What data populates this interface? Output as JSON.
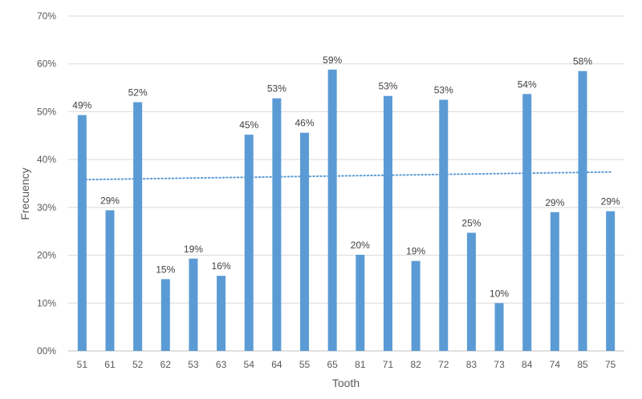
{
  "chart_data": {
    "type": "bar",
    "title": "",
    "xlabel": "Tooth",
    "ylabel": "Frecuency",
    "categories": [
      "51",
      "61",
      "52",
      "62",
      "53",
      "63",
      "54",
      "64",
      "55",
      "65",
      "81",
      "71",
      "82",
      "72",
      "83",
      "73",
      "84",
      "74",
      "85",
      "75"
    ],
    "values": [
      49.3,
      29.4,
      52.0,
      15.0,
      19.3,
      15.7,
      45.2,
      52.8,
      45.6,
      58.8,
      20.1,
      53.3,
      18.8,
      52.5,
      24.7,
      10.0,
      53.7,
      29.0,
      58.5,
      29.2
    ],
    "data_labels": [
      "49%",
      "29%",
      "52%",
      "15%",
      "19%",
      "16%",
      "45%",
      "53%",
      "46%",
      "59%",
      "20%",
      "53%",
      "19%",
      "53%",
      "25%",
      "10%",
      "54%",
      "29%",
      "58%",
      "29%"
    ],
    "ylim": [
      0,
      70
    ],
    "y_ticks": [
      0,
      10,
      20,
      30,
      40,
      50,
      60,
      70
    ],
    "y_tick_labels": [
      "00%",
      "10%",
      "20%",
      "30%",
      "40%",
      "50%",
      "60%",
      "70%"
    ],
    "trendline": {
      "type": "linear",
      "style": "dotted",
      "start_value": 35.8,
      "end_value": 37.4
    },
    "grid": true,
    "colors": {
      "bar": "#5b9bd5",
      "trend": "#5b9bd5",
      "grid": "#d9d9d9",
      "axis": "#bfbfbf",
      "text": "#595959"
    }
  }
}
